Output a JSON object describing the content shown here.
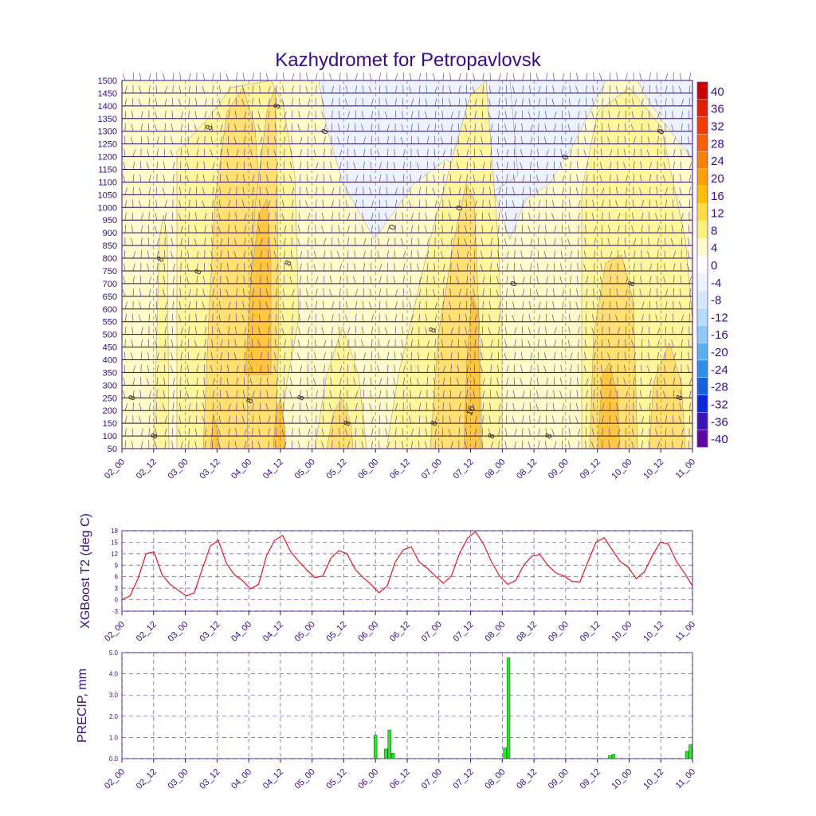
{
  "colors": {
    "axis": "#3b0a8a",
    "line": "#e8141c",
    "bar": "#22ee22",
    "bar_edge": "#116611",
    "grid": "#6a4ab0",
    "fill_light": "#fffbc8",
    "fill_yellow": "#fff59a",
    "fill_gold": "#ffe070",
    "fill_orange": "#ffc640",
    "fill_cold": "#eaf3ff"
  },
  "chart_data": [
    {
      "id": "cross-section",
      "type": "heatmap",
      "title": "Kazhydromet for Petropavlovsk",
      "xlabel": "",
      "ylabel": "",
      "x_ticks": [
        "02_00",
        "02_12",
        "03_00",
        "03_12",
        "04_00",
        "04_12",
        "05_00",
        "05_12",
        "06_00",
        "06_12",
        "07_00",
        "07_12",
        "08_00",
        "08_12",
        "09_00",
        "09_12",
        "10_00",
        "10_12",
        "11_00"
      ],
      "y_ticks": [
        1500,
        1450,
        1400,
        1350,
        1300,
        1250,
        1200,
        1150,
        1100,
        1050,
        1000,
        950,
        900,
        850,
        800,
        750,
        700,
        650,
        600,
        550,
        500,
        450,
        400,
        350,
        300,
        250,
        200,
        150,
        100,
        50
      ],
      "colorbar": {
        "labels": [
          "40",
          "36",
          "32",
          "28",
          "24",
          "20",
          "16",
          "12",
          "8",
          "4",
          "0",
          "-4",
          "-8",
          "-12",
          "-16",
          "-20",
          "-24",
          "-28",
          "-32",
          "-36",
          "-40"
        ],
        "colors": [
          "#cc0000",
          "#e41e00",
          "#f23c00",
          "#f75f00",
          "#fb8200",
          "#fda000",
          "#fec000",
          "#ffdc40",
          "#fff07a",
          "#fffbc8",
          "#ffffff",
          "#eaf3ff",
          "#d2e9fb",
          "#b5dcf8",
          "#8ecbf4",
          "#58b2ef",
          "#2c8fe8",
          "#1361e0",
          "#0a28d8",
          "#3a14b4",
          "#5a0aa0"
        ]
      },
      "contour_labels": [
        "8",
        "8",
        "8",
        "8",
        "8",
        "8",
        "8",
        "8",
        "8",
        "8",
        "8",
        "8",
        "8",
        "8",
        "8",
        "8",
        "16",
        "0",
        "0",
        "0",
        "0",
        "0",
        "0"
      ]
    },
    {
      "id": "t2",
      "type": "line",
      "ylabel": "XGBoost T2 (deg C)",
      "xlabel": "",
      "ylim": [
        -3,
        18
      ],
      "y_ticks": [
        "18",
        "15",
        "12",
        "9",
        "6",
        "3",
        "0",
        "-3"
      ],
      "x_ticks": [
        "02_00",
        "02_12",
        "03_00",
        "03_12",
        "04_00",
        "04_12",
        "05_00",
        "05_12",
        "06_00",
        "06_12",
        "07_00",
        "07_12",
        "08_00",
        "08_12",
        "09_00",
        "09_12",
        "10_00",
        "10_12",
        "11_00"
      ],
      "series": [
        {
          "name": "T2",
          "values": [
            0.0,
            1.0,
            5.5,
            12.0,
            12.5,
            6.5,
            4.0,
            2.5,
            1.0,
            1.8,
            8.0,
            14.0,
            15.5,
            9.5,
            6.5,
            5.0,
            2.8,
            4.0,
            11.5,
            15.5,
            16.8,
            12.5,
            10.0,
            7.8,
            5.8,
            6.2,
            10.8,
            12.8,
            12.0,
            8.0,
            5.8,
            4.0,
            1.8,
            3.5,
            9.8,
            13.0,
            13.8,
            9.8,
            8.2,
            6.2,
            4.3,
            6.2,
            12.0,
            16.0,
            17.8,
            14.5,
            9.8,
            6.2,
            4.0,
            5.0,
            9.0,
            11.3,
            11.8,
            9.0,
            7.0,
            6.2,
            4.8,
            4.6,
            10.0,
            15.0,
            16.2,
            13.0,
            10.0,
            8.5,
            5.5,
            7.2,
            11.5,
            15.0,
            14.5,
            10.0,
            7.0,
            3.6
          ]
        }
      ]
    },
    {
      "id": "precip",
      "type": "bar",
      "ylabel": "PRECIP, mm",
      "xlabel": "",
      "ylim": [
        0,
        5
      ],
      "y_ticks": [
        "5.0",
        "4.0",
        "3.0",
        "2.0",
        "1.0",
        "0.0"
      ],
      "x_ticks": [
        "02_00",
        "02_12",
        "03_00",
        "03_12",
        "04_00",
        "04_12",
        "05_00",
        "05_12",
        "06_00",
        "06_12",
        "07_00",
        "07_12",
        "08_00",
        "08_12",
        "09_00",
        "09_12",
        "10_00",
        "10_12",
        "11_00"
      ],
      "values": [
        0,
        0,
        0,
        0,
        0,
        0,
        0,
        0,
        0,
        0,
        0,
        0,
        0,
        0,
        0,
        0,
        0,
        0,
        0,
        0,
        0,
        0,
        0,
        0,
        0,
        0,
        0,
        0,
        0,
        0,
        0,
        0,
        0,
        0,
        0,
        0,
        0,
        0,
        0,
        0,
        0,
        0,
        0,
        0,
        0,
        0,
        0,
        0,
        0,
        0,
        0,
        0,
        0,
        0,
        0,
        0,
        0,
        0,
        0,
        0,
        0,
        0,
        0,
        0,
        0,
        0,
        0,
        0,
        0,
        0,
        0,
        0,
        1.1,
        0,
        0,
        0.45,
        1.35,
        0.25,
        0,
        0,
        0,
        0,
        0,
        0,
        0,
        0,
        0,
        0,
        0,
        0,
        0,
        0,
        0,
        0,
        0,
        0,
        0,
        0,
        0,
        0,
        0,
        0,
        0,
        0,
        0,
        0,
        0,
        0,
        0,
        0.5,
        4.75,
        0,
        0,
        0,
        0,
        0,
        0,
        0,
        0,
        0,
        0,
        0,
        0,
        0,
        0,
        0,
        0,
        0,
        0,
        0,
        0,
        0,
        0,
        0,
        0,
        0,
        0,
        0,
        0,
        0.15,
        0.2,
        0,
        0,
        0,
        0,
        0,
        0,
        0,
        0,
        0,
        0,
        0,
        0,
        0,
        0,
        0,
        0,
        0,
        0,
        0,
        0,
        0.35,
        0.65
      ]
    }
  ]
}
